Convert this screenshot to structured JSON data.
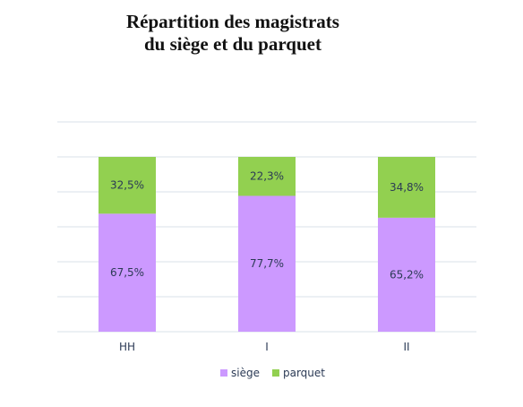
{
  "chart_data": {
    "type": "bar",
    "stacked": true,
    "title": "Répartition des magistrats du siège et du parquet",
    "title_lines": [
      "Répartition des magistrats",
      "du siège et du parquet"
    ],
    "categories": [
      "HH",
      "I",
      "II"
    ],
    "series": [
      {
        "name": "siège",
        "values": [
          67.5,
          77.7,
          65.2
        ],
        "labels": [
          "67,5%",
          "77,7%",
          "65,2%"
        ],
        "color": "#cc99ff"
      },
      {
        "name": "parquet",
        "values": [
          32.5,
          22.3,
          34.8
        ],
        "labels": [
          "32,5%",
          "22,3%",
          "34,8%"
        ],
        "color": "#92d050"
      }
    ],
    "ylim": [
      0,
      100
    ],
    "grid": true,
    "legend": "bottom"
  }
}
